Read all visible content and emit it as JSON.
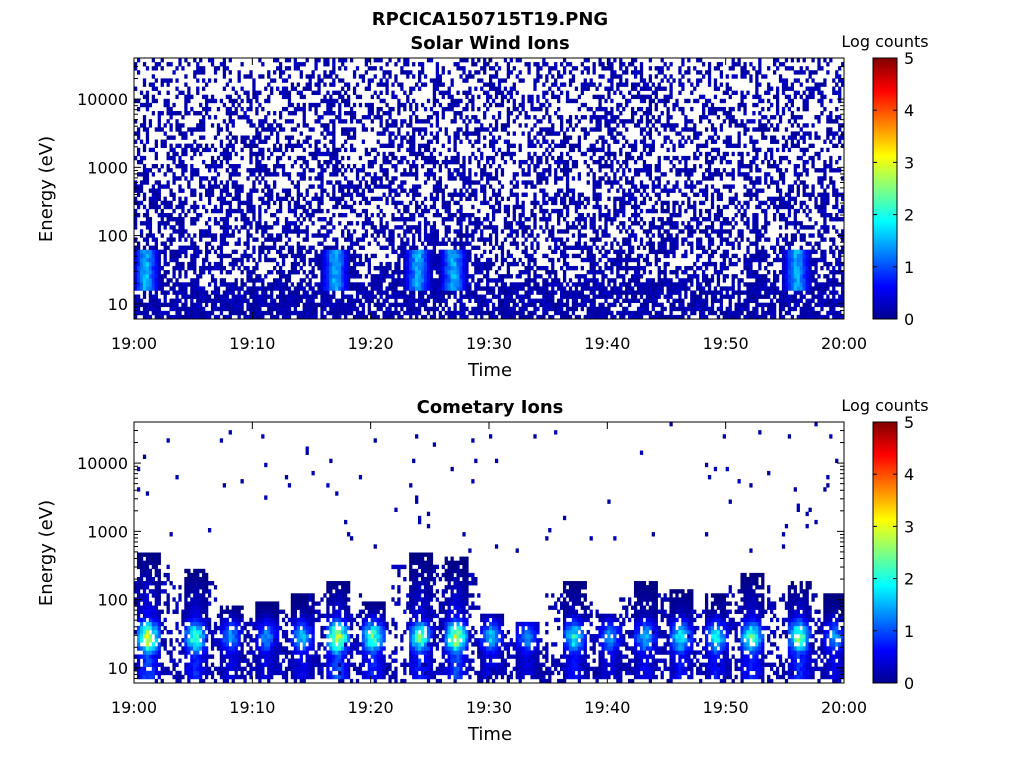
{
  "figure": {
    "title": "RPCICA150715T19.PNG"
  },
  "chart_data": [
    {
      "type": "heatmap",
      "title": "Solar Wind Ions",
      "xlabel": "Time",
      "ylabel": "Energy (eV)",
      "x_ticks": [
        "19:00",
        "19:10",
        "19:20",
        "19:30",
        "19:40",
        "19:50",
        "20:00"
      ],
      "x_range": [
        "19:00",
        "20:00"
      ],
      "y_scale": "log",
      "y_range": [
        6,
        40000
      ],
      "y_ticks": [
        10,
        100,
        1000,
        10000
      ],
      "y_tick_labels": [
        "10",
        "100",
        "1000",
        "10000"
      ],
      "colorbar": {
        "label": "Log counts",
        "range": [
          0,
          5
        ],
        "ticks": [
          "0",
          "1",
          "2",
          "3",
          "4",
          "5"
        ],
        "colormap": "jet"
      },
      "description_values": {
        "background_level_log_counts": 0.1,
        "peak_level_log_counts": 1.9,
        "enhanced_times": [
          "19:01",
          "19:17",
          "19:24",
          "19:27",
          "19:56"
        ],
        "enhanced_energy_range_eV": [
          15,
          60
        ]
      }
    },
    {
      "type": "heatmap",
      "title": "Cometary Ions",
      "xlabel": "Time",
      "ylabel": "Energy (eV)",
      "x_ticks": [
        "19:00",
        "19:10",
        "19:20",
        "19:30",
        "19:40",
        "19:50",
        "20:00"
      ],
      "x_range": [
        "19:00",
        "20:00"
      ],
      "y_scale": "log",
      "y_range": [
        6,
        40000
      ],
      "y_ticks": [
        10,
        100,
        1000,
        10000
      ],
      "y_tick_labels": [
        "10",
        "100",
        "1000",
        "10000"
      ],
      "colorbar": {
        "label": "Log counts",
        "range": [
          0,
          5
        ],
        "ticks": [
          "0",
          "1",
          "2",
          "3",
          "4",
          "5"
        ],
        "colormap": "jet"
      },
      "bursts": [
        {
          "time": "19:01",
          "peak_log_counts": 3.2,
          "max_energy_eV": 500
        },
        {
          "time": "19:05",
          "peak_log_counts": 2.6,
          "max_energy_eV": 300
        },
        {
          "time": "19:08",
          "peak_log_counts": 1.6,
          "max_energy_eV": 80
        },
        {
          "time": "19:11",
          "peak_log_counts": 1.5,
          "max_energy_eV": 90
        },
        {
          "time": "19:14",
          "peak_log_counts": 1.8,
          "max_energy_eV": 120
        },
        {
          "time": "19:17",
          "peak_log_counts": 3.3,
          "max_energy_eV": 200
        },
        {
          "time": "19:20",
          "peak_log_counts": 2.6,
          "max_energy_eV": 100
        },
        {
          "time": "19:24",
          "peak_log_counts": 2.6,
          "max_energy_eV": 500
        },
        {
          "time": "19:27",
          "peak_log_counts": 3.2,
          "max_energy_eV": 400
        },
        {
          "time": "19:30",
          "peak_log_counts": 1.8,
          "max_energy_eV": 60
        },
        {
          "time": "19:33",
          "peak_log_counts": 1.5,
          "max_energy_eV": 50
        },
        {
          "time": "19:37",
          "peak_log_counts": 2.2,
          "max_energy_eV": 200
        },
        {
          "time": "19:40",
          "peak_log_counts": 1.6,
          "max_energy_eV": 60
        },
        {
          "time": "19:43",
          "peak_log_counts": 1.8,
          "max_energy_eV": 200
        },
        {
          "time": "19:46",
          "peak_log_counts": 2.2,
          "max_energy_eV": 150
        },
        {
          "time": "19:49",
          "peak_log_counts": 2.2,
          "max_energy_eV": 120
        },
        {
          "time": "19:52",
          "peak_log_counts": 2.6,
          "max_energy_eV": 250
        },
        {
          "time": "19:56",
          "peak_log_counts": 2.8,
          "max_energy_eV": 200
        },
        {
          "time": "19:59",
          "peak_log_counts": 1.6,
          "max_energy_eV": 120
        }
      ]
    }
  ]
}
